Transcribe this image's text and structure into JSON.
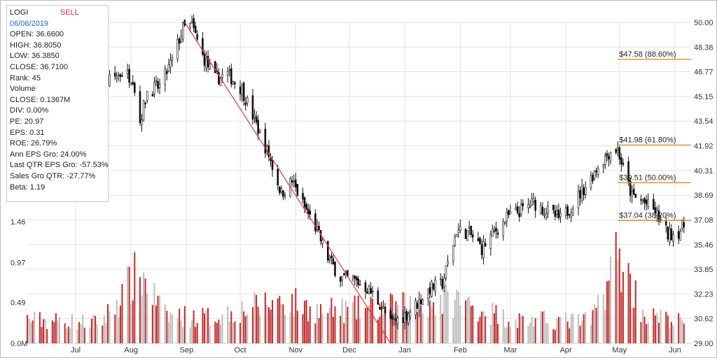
{
  "info_panel": {
    "symbol": "LOGI",
    "signal": "SELL",
    "date": "06/06/2019",
    "lines": [
      "OPEN: 36.6600",
      "HIGH: 36.8050",
      "LOW: 36.3850",
      "CLOSE: 36.7100",
      "Rank: 45",
      "Volume",
      "CLOSE: 0.1367M",
      "DIV: 0.00%",
      "PE: 20.97",
      "EPS: 0.31",
      "ROE: 26.79%",
      "Ann EPS Gro: 24.00%",
      "Last QTR EPS Gro: -57.53%",
      "Sales Gro QTR: -27.77%",
      "Beta: 1.19"
    ]
  },
  "colors": {
    "up_candle": "#111111",
    "down_candle": "#111111",
    "trendline": "#e53935",
    "fib_line": "#f57c00",
    "volume_up": "#bdbdbd",
    "volume_down": "#c62828",
    "grid": "#e3e3e3"
  },
  "chart_data": {
    "type": "candlestick",
    "symbol": "LOGI",
    "price_axis": {
      "ticks": [
        "50.00",
        "48.38",
        "46.77",
        "45.15",
        "43.54",
        "41.92",
        "40.31",
        "38.69",
        "37.08",
        "35.46",
        "33.85",
        "32.23",
        "30.62",
        "29.00"
      ],
      "ylim": [
        29.0,
        50.0
      ]
    },
    "volume_axis": {
      "ticks": [
        "1.46",
        "0.97",
        "0.49",
        "0.0M"
      ],
      "ylim": [
        0,
        1.46
      ],
      "unit": "M"
    },
    "x_tick_labels": [
      "Jul",
      "Aug",
      "Sep",
      "Oct",
      "Nov",
      "Dec",
      "Jan",
      "Feb",
      "Mar",
      "Apr",
      "May",
      "Jun"
    ],
    "x_tick_dates": [
      "2018-07-01",
      "2018-08-01",
      "2018-09-01",
      "2018-10-01",
      "2018-11-01",
      "2018-12-01",
      "2019-01-01",
      "2019-02-01",
      "2019-03-01",
      "2019-04-01",
      "2019-05-01",
      "2019-06-01"
    ],
    "x_range": [
      "2018-06-04",
      "2019-06-10"
    ],
    "price_path": [
      [
        "2018-06-04",
        45.3
      ],
      [
        "2018-06-12",
        45.6
      ],
      [
        "2018-06-20",
        44.0
      ],
      [
        "2018-06-28",
        44.6
      ],
      [
        "2018-07-06",
        44.9
      ],
      [
        "2018-07-12",
        45.6
      ],
      [
        "2018-07-20",
        46.2
      ],
      [
        "2018-07-27",
        46.7
      ],
      [
        "2018-08-02",
        46.4
      ],
      [
        "2018-08-06",
        43.5
      ],
      [
        "2018-08-10",
        45.5
      ],
      [
        "2018-08-17",
        45.8
      ],
      [
        "2018-08-24",
        47.5
      ],
      [
        "2018-08-30",
        49.6
      ],
      [
        "2018-09-04",
        49.8
      ],
      [
        "2018-09-10",
        47.8
      ],
      [
        "2018-09-17",
        46.3
      ],
      [
        "2018-09-24",
        46.6
      ],
      [
        "2018-10-02",
        45.6
      ],
      [
        "2018-10-10",
        43.3
      ],
      [
        "2018-10-17",
        41.3
      ],
      [
        "2018-10-24",
        38.8
      ],
      [
        "2018-10-30",
        39.6
      ],
      [
        "2018-11-05",
        38.1
      ],
      [
        "2018-11-12",
        36.6
      ],
      [
        "2018-11-19",
        34.6
      ],
      [
        "2018-11-26",
        33.3
      ],
      [
        "2018-12-04",
        33.1
      ],
      [
        "2018-12-11",
        32.6
      ],
      [
        "2018-12-18",
        31.6
      ],
      [
        "2018-12-24",
        30.3
      ],
      [
        "2019-01-02",
        30.9
      ],
      [
        "2019-01-08",
        31.6
      ],
      [
        "2019-01-15",
        32.6
      ],
      [
        "2019-01-22",
        32.9
      ],
      [
        "2019-01-30",
        36.4
      ],
      [
        "2019-02-06",
        36.2
      ],
      [
        "2019-02-13",
        35.2
      ],
      [
        "2019-02-21",
        36.4
      ],
      [
        "2019-02-28",
        37.3
      ],
      [
        "2019-03-07",
        37.7
      ],
      [
        "2019-03-14",
        38.2
      ],
      [
        "2019-03-22",
        37.6
      ],
      [
        "2019-03-29",
        37.1
      ],
      [
        "2019-04-05",
        38.1
      ],
      [
        "2019-04-12",
        39.3
      ],
      [
        "2019-04-19",
        40.6
      ],
      [
        "2019-04-26",
        41.6
      ],
      [
        "2019-04-30",
        41.7
      ],
      [
        "2019-05-03",
        40.4
      ],
      [
        "2019-05-08",
        38.6
      ],
      [
        "2019-05-14",
        38.3
      ],
      [
        "2019-05-21",
        37.6
      ],
      [
        "2019-05-28",
        36.1
      ],
      [
        "2019-06-03",
        36.3
      ],
      [
        "2019-06-06",
        36.7
      ]
    ],
    "trendline": {
      "start": [
        "2018-08-31",
        50.0
      ],
      "end": [
        "2018-12-24",
        29.0
      ]
    },
    "fib_levels": [
      {
        "label": "$47.58 (88.60%)",
        "value": 47.58
      },
      {
        "label": "$41.98 (61.80%)",
        "value": 41.98
      },
      {
        "label": "$39.51 (50.00%)",
        "value": 39.51
      },
      {
        "label": "$37.04 (38.20%)",
        "value": 37.04
      }
    ],
    "fib_start_date": "2019-04-30",
    "volume_path": [
      [
        "2018-06-04",
        0.3
      ],
      [
        "2018-07-15",
        0.26
      ],
      [
        "2018-08-06",
        0.9
      ],
      [
        "2018-08-20",
        0.35
      ],
      [
        "2018-09-15",
        0.33
      ],
      [
        "2018-10-25",
        0.55
      ],
      [
        "2018-11-15",
        0.4
      ],
      [
        "2018-12-24",
        0.45
      ],
      [
        "2019-01-30",
        0.55
      ],
      [
        "2019-03-01",
        0.3
      ],
      [
        "2019-04-15",
        0.28
      ],
      [
        "2019-04-30",
        1.12
      ],
      [
        "2019-05-15",
        0.35
      ],
      [
        "2019-06-06",
        0.27
      ]
    ]
  }
}
